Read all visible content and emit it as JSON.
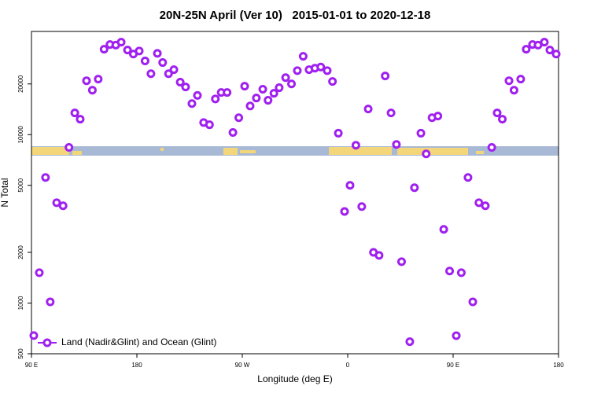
{
  "chart_data": {
    "type": "scatter",
    "title": "20N-25N April (Ver 10)   2015-01-01 to 2020-12-18",
    "x_label": "Longitude (deg E)",
    "y_label": "N Total",
    "xlim": [
      90,
      540
    ],
    "xticks": [
      {
        "value": 90,
        "label": "90 E"
      },
      180,
      {
        "value": 270,
        "label": "90 W"
      },
      {
        "value": 360,
        "label": "0"
      },
      {
        "value": 450,
        "label": "90 E"
      },
      {
        "value": 540,
        "label": "180"
      }
    ],
    "ylim": [
      500,
      41000
    ],
    "y_scale": "log",
    "yticks": [
      500,
      1000,
      2000,
      5000,
      10000,
      20000
    ],
    "legend_position": "lower left",
    "series": [
      {
        "name": "Land (Nadir&Glint) and Ocean (Glint)",
        "color": "#a020f0",
        "x": [
          92,
          96.7,
          102,
          106,
          111.5,
          117,
          122,
          127,
          131.6,
          137,
          142,
          147,
          152,
          157,
          162,
          166.6,
          172,
          177,
          182,
          187,
          192,
          197.5,
          202,
          207,
          211.6,
          217,
          221.6,
          227,
          231.7,
          237,
          242,
          247,
          252,
          257,
          262,
          267,
          272,
          276.7,
          282,
          287.5,
          292,
          297,
          301.5,
          307,
          312,
          317,
          322,
          327,
          332,
          337,
          342.5,
          347,
          352,
          357.3,
          362,
          367,
          372,
          377.5,
          382,
          386.8,
          392,
          397,
          401.6,
          406,
          413,
          417,
          422.5,
          427,
          432,
          437,
          442,
          447,
          452.7,
          457,
          462.7,
          466.8,
          472,
          477.5,
          483,
          487.6,
          492,
          497.7,
          502,
          507.7,
          512.4,
          517.8,
          522.5,
          527.9,
          532.6,
          538
        ],
        "values": [
          641,
          1514,
          5570,
          1017,
          3945,
          3780,
          8400,
          13460,
          12360,
          20900,
          18370,
          21380,
          32150,
          34300,
          34000,
          35400,
          31800,
          30100,
          31400,
          27400,
          23000,
          30400,
          26800,
          23000,
          24300,
          20500,
          19200,
          15300,
          17100,
          11800,
          11450,
          16300,
          17800,
          17800,
          10300,
          12600,
          19400,
          14800,
          16500,
          18600,
          16000,
          17600,
          19000,
          21800,
          20000,
          24000,
          29200,
          24300,
          24800,
          25200,
          24000,
          20700,
          10200,
          3500,
          5000,
          8650,
          3740,
          14200,
          2000,
          1920,
          22300,
          13460,
          8750,
          1760,
          590,
          4840,
          10200,
          7690,
          12600,
          12900,
          2740,
          1550,
          640,
          1514,
          5570,
          1017,
          3945,
          3780,
          8400,
          13460,
          12360,
          20900,
          18370,
          21380,
          32150,
          34300,
          34000,
          35400,
          31800,
          30100
        ]
      }
    ]
  }
}
